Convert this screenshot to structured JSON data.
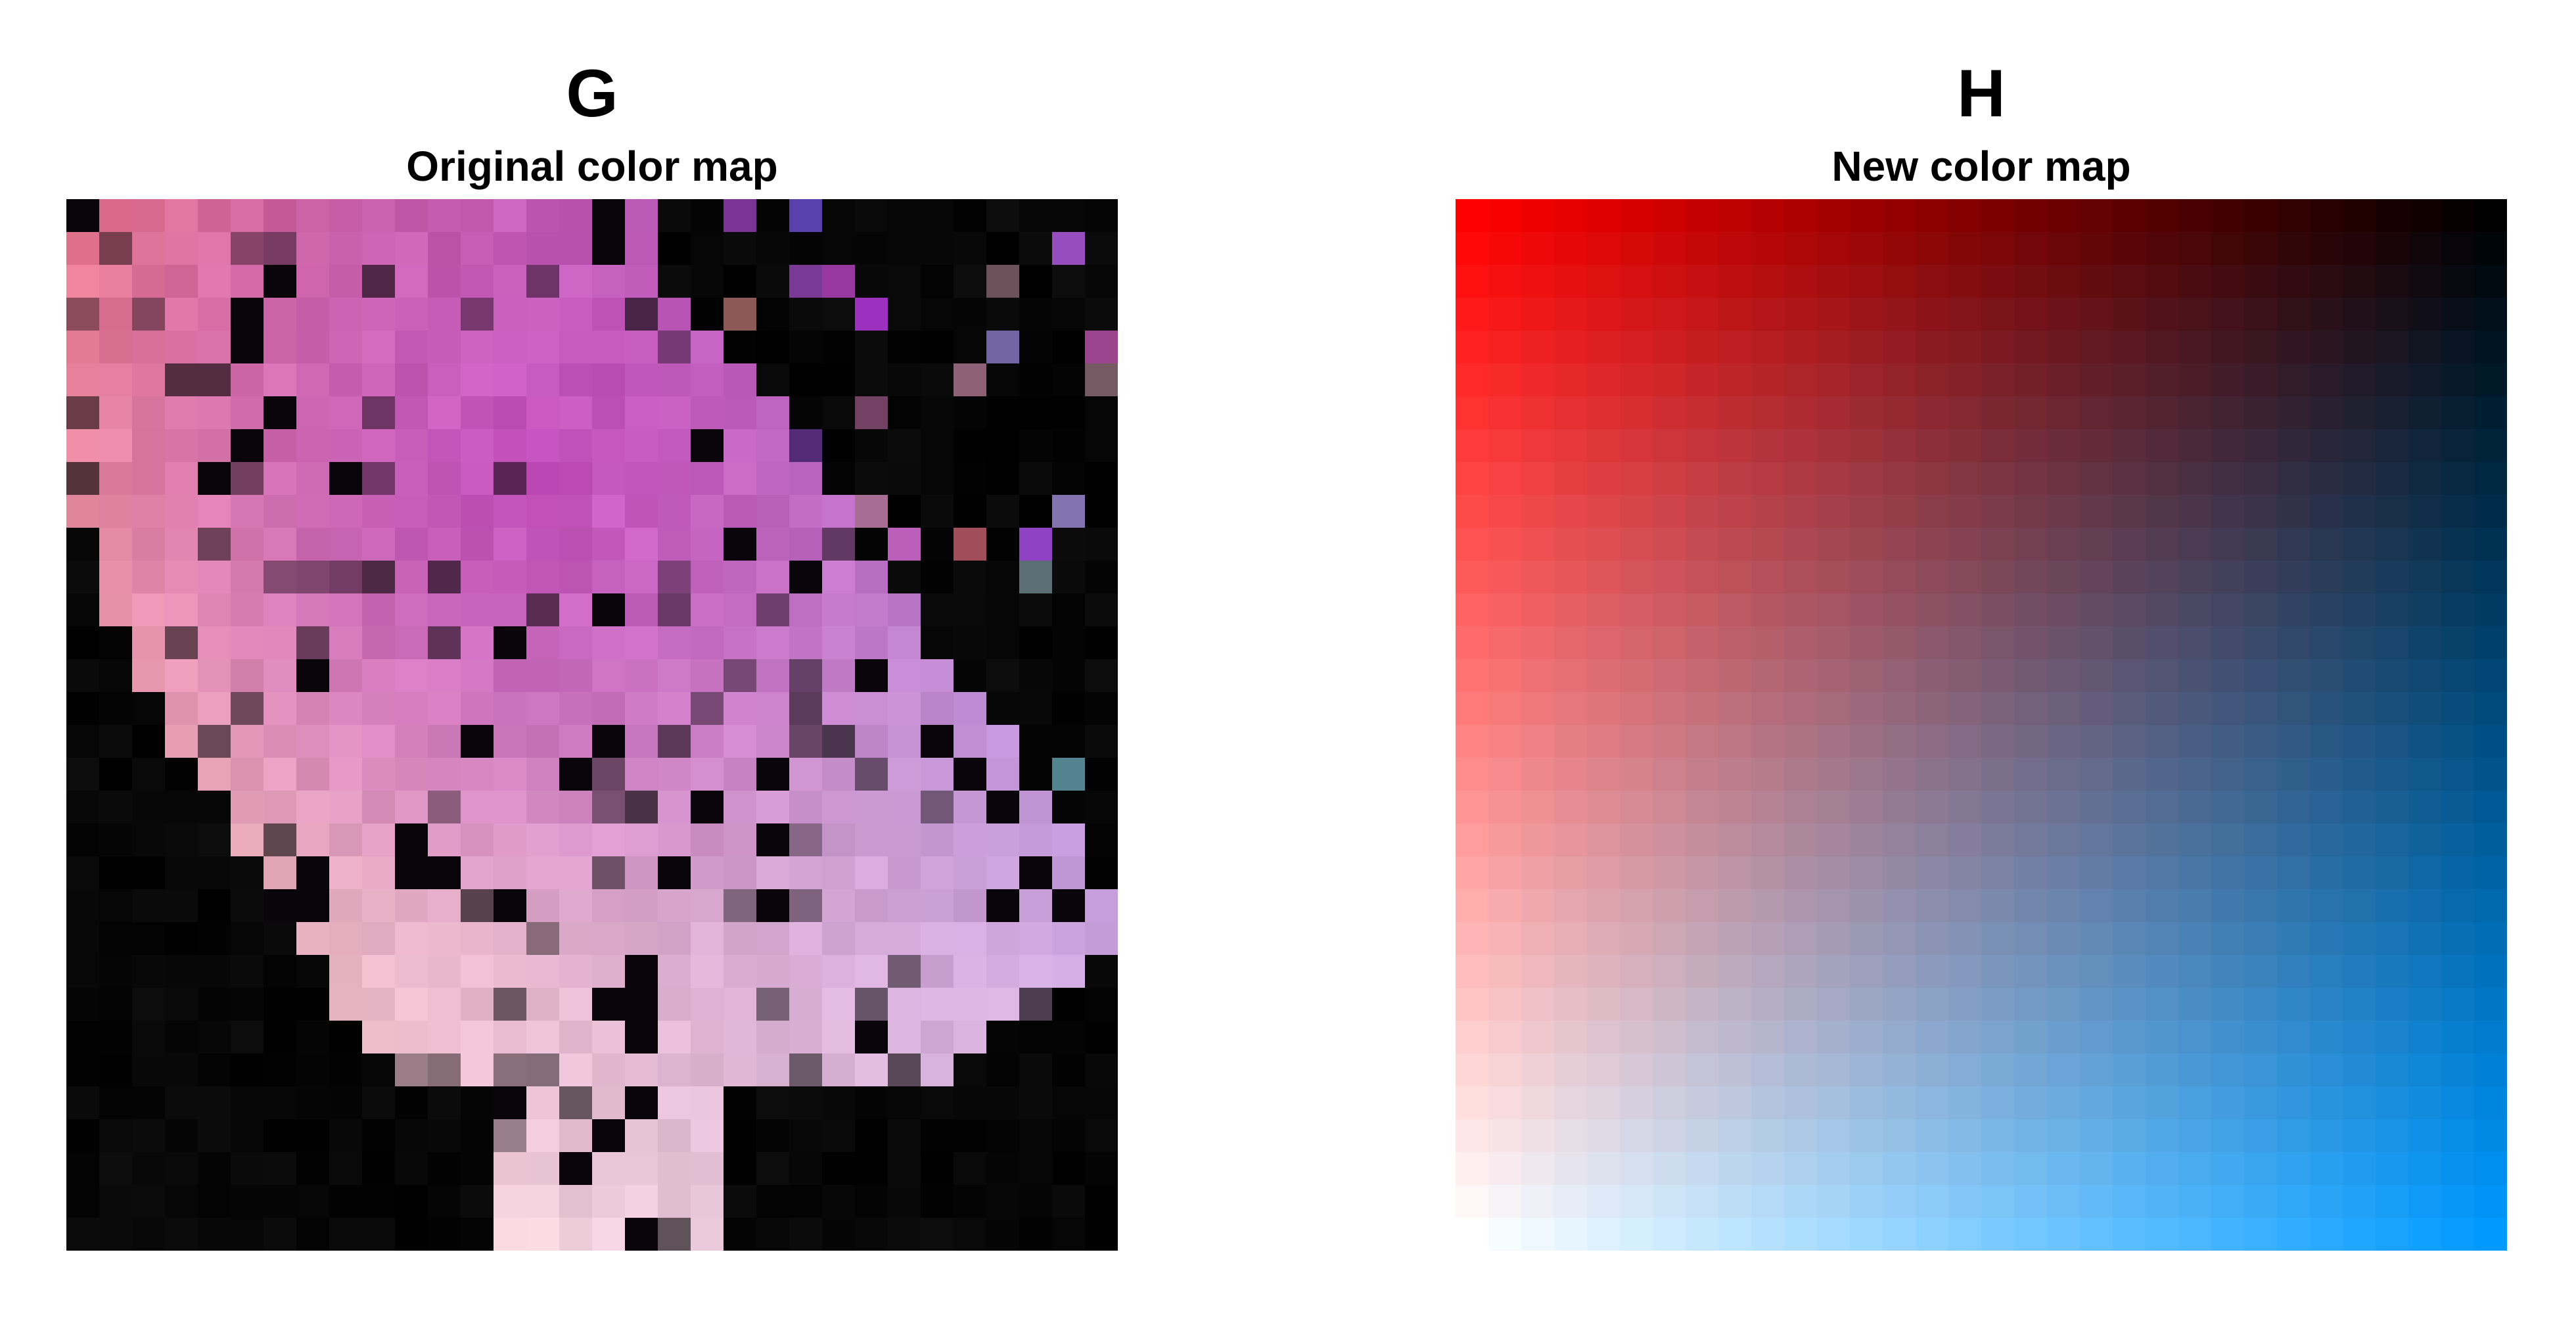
{
  "chart_data": [
    {
      "type": "heatmap",
      "panel_label": "G",
      "title": "Original color map",
      "grid_size": 32,
      "grid": false,
      "description_colors": {
        "top_left": "#e0708f",
        "center": "#c060b0",
        "right": "#9050d0",
        "bottom_center": "#e0c0e0",
        "background": "#000000"
      }
    },
    {
      "type": "heatmap",
      "panel_label": "H",
      "title": "New color map",
      "grid_size": 32,
      "grid": false,
      "corner_colors": {
        "top_left": "#ff0000",
        "top_right": "#000000",
        "bottom_left": "#ffffff",
        "bottom_right": "#0099ff"
      }
    }
  ]
}
